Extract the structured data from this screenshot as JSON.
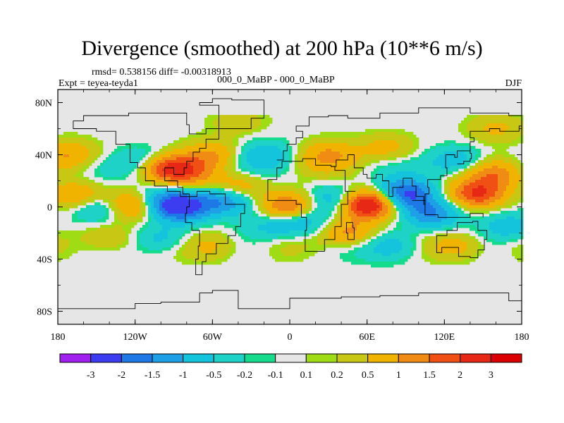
{
  "chart_data": {
    "type": "heatmap",
    "title": "Divergence (smoothed) at 200 hPa (10**6 m/s)",
    "stats": "rmsd= 0.538156 diff= -0.00318913",
    "left_label": "Expt = teyea-teyda1",
    "center_label": "000_0_MaBP - 000_0_MaBP",
    "season": "DJF",
    "x_ticks": [
      "180",
      "120W",
      "60W",
      "0",
      "60E",
      "120E",
      "180"
    ],
    "x_tick_values": [
      -180,
      -120,
      -60,
      0,
      60,
      120,
      180
    ],
    "y_ticks": [
      "80N",
      "40N",
      "0",
      "40S",
      "80S"
    ],
    "y_tick_values": [
      80,
      40,
      0,
      -40,
      -80
    ],
    "xlim": [
      -180,
      180
    ],
    "ylim": [
      -90,
      90
    ],
    "colorbar": {
      "labels": [
        "-3",
        "-2",
        "-1.5",
        "-1",
        "-0.5",
        "-0.2",
        "-0.1",
        "0.1",
        "0.2",
        "0.5",
        "1",
        "1.5",
        "2",
        "3"
      ],
      "colors": [
        "#a020f0",
        "#3c3cf0",
        "#1e78e6",
        "#1ea0e6",
        "#14c3dc",
        "#1ed2c8",
        "#14dc8c",
        "#e6e6e6",
        "#a0dc14",
        "#c8c814",
        "#f0b400",
        "#f08c14",
        "#f05014",
        "#e62814",
        "#dc0000"
      ]
    },
    "blobs": [
      {
        "lon": -85,
        "lat": 0,
        "value": -2.5
      },
      {
        "lon": -105,
        "lat": 5,
        "value": -1.2
      },
      {
        "lon": -150,
        "lat": 0,
        "value": -1.0
      },
      {
        "lon": -165,
        "lat": 8,
        "value": 1.2
      },
      {
        "lon": -120,
        "lat": 2,
        "value": 1.8
      },
      {
        "lon": -95,
        "lat": 30,
        "value": 2.0
      },
      {
        "lon": -75,
        "lat": 25,
        "value": 0.8
      },
      {
        "lon": -110,
        "lat": 35,
        "value": -0.8
      },
      {
        "lon": -60,
        "lat": 40,
        "value": 1.0
      },
      {
        "lon": -50,
        "lat": 5,
        "value": -1.5
      },
      {
        "lon": -40,
        "lat": 15,
        "value": 1.0
      },
      {
        "lon": 0,
        "lat": 0,
        "value": 1.8
      },
      {
        "lon": 10,
        "lat": -10,
        "value": -1.0
      },
      {
        "lon": -15,
        "lat": -15,
        "value": -0.6
      },
      {
        "lon": 60,
        "lat": 2,
        "value": 3.0
      },
      {
        "lon": 35,
        "lat": 5,
        "value": -1.2
      },
      {
        "lon": 45,
        "lat": -20,
        "value": 1.2
      },
      {
        "lon": 90,
        "lat": 10,
        "value": -2.2
      },
      {
        "lon": 110,
        "lat": -5,
        "value": -1.5
      },
      {
        "lon": 145,
        "lat": 10,
        "value": 2.0
      },
      {
        "lon": 160,
        "lat": 25,
        "value": 1.2
      },
      {
        "lon": 130,
        "lat": 35,
        "value": -1.0
      },
      {
        "lon": 130,
        "lat": -30,
        "value": 0.9
      },
      {
        "lon": -20,
        "lat": 40,
        "value": -0.8
      },
      {
        "lon": 30,
        "lat": 40,
        "value": 1.0
      },
      {
        "lon": -170,
        "lat": 40,
        "value": 1.0
      },
      {
        "lon": -60,
        "lat": -30,
        "value": 0.8
      },
      {
        "lon": 170,
        "lat": -15,
        "value": -0.8
      },
      {
        "lon": -140,
        "lat": -25,
        "value": 0.7
      },
      {
        "lon": 80,
        "lat": -30,
        "value": -0.9
      },
      {
        "lon": -100,
        "lat": -25,
        "value": -0.8
      },
      {
        "lon": 160,
        "lat": 60,
        "value": 0.6
      },
      {
        "lon": -40,
        "lat": 65,
        "value": 0.4
      },
      {
        "lon": 75,
        "lat": 45,
        "value": 0.7
      }
    ]
  }
}
